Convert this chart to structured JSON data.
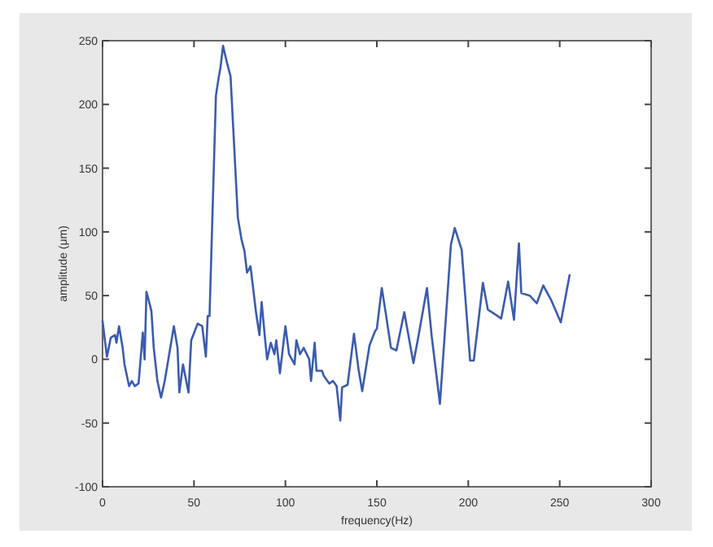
{
  "chart_data": {
    "type": "line",
    "xlabel": "frequency(Hz)",
    "ylabel": "amplitude (μm)",
    "xlim": [
      0,
      300
    ],
    "ylim": [
      -100,
      250
    ],
    "xticks": [
      0,
      50,
      100,
      150,
      200,
      250,
      300
    ],
    "yticks": [
      -100,
      -50,
      0,
      50,
      100,
      150,
      200,
      250
    ],
    "grid": false,
    "series": [
      {
        "color": "#3a5bb0",
        "x": [
          0,
          2.4,
          4.5,
          6.8,
          7.6,
          9,
          11,
          12,
          14.5,
          16,
          17.6,
          19.7,
          22,
          23,
          24,
          26.7,
          28,
          30,
          32,
          34,
          39,
          41,
          42,
          44,
          47,
          48.5,
          52,
          54.5,
          56.5,
          57.5,
          58.5,
          62,
          63.6,
          64.5,
          65.9,
          67,
          68,
          70,
          74,
          76,
          77.6,
          79,
          80.9,
          82,
          84,
          85.8,
          87,
          88.8,
          90,
          92,
          94,
          95,
          97,
          100,
          102,
          105,
          106,
          108,
          110,
          113,
          114,
          116,
          117,
          120,
          121,
          124,
          126,
          128,
          130,
          131,
          134,
          137.5,
          140,
          142,
          146,
          149,
          150,
          152.7,
          155,
          157.7,
          160.7,
          165,
          170,
          173,
          177.4,
          180,
          184.5,
          190.5,
          192.6,
          196.4,
          201,
          203,
          208,
          210.7,
          215,
          218,
          221.8,
          225,
          227.7,
          229,
          233.6,
          237.5,
          241,
          245.5,
          250.6,
          255.4
        ],
        "values": [
          30,
          2,
          17,
          19,
          13,
          26,
          9,
          -4,
          -21,
          -17,
          -21,
          -19,
          21,
          0,
          53,
          38,
          9,
          -17,
          -30,
          -17,
          26,
          9,
          -26,
          -4,
          -26,
          15,
          28,
          26,
          2,
          34,
          34,
          207,
          222,
          229,
          246,
          239,
          233,
          222,
          111,
          94,
          85,
          68,
          73,
          60,
          36,
          19,
          45,
          17,
          0,
          13,
          4,
          15,
          -11,
          26,
          4,
          -4,
          15,
          4,
          9,
          0,
          -17,
          13,
          -9,
          -9,
          -13,
          -19,
          -17,
          -21,
          -48,
          -22,
          -20,
          20,
          -8,
          -25,
          11,
          22,
          24,
          56,
          35,
          9,
          7,
          37,
          -3,
          20,
          56,
          18,
          -35,
          90,
          103,
          86,
          -1,
          -1,
          60,
          39,
          35,
          32,
          61,
          31,
          91,
          52,
          50,
          44,
          58,
          46,
          29,
          66
        ]
      }
    ]
  }
}
